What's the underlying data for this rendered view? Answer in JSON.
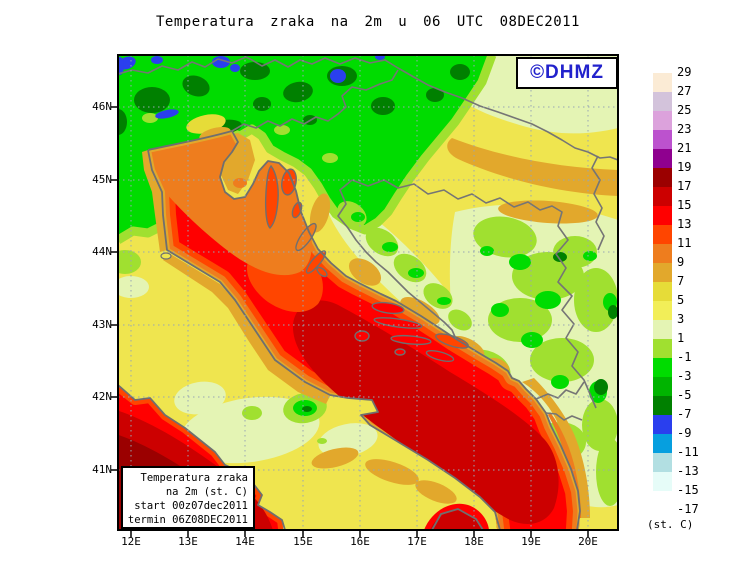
{
  "title": "Temperatura zraka na 2m u 06 UTC 08DEC2011",
  "watermark": {
    "text": "©DHMZ",
    "color": "#2222CC"
  },
  "info_box": {
    "lines": [
      "Temperatura zraka",
      "na 2m (st. C)",
      "start 00z07dec2011",
      "termin 06Z08DEC2011"
    ]
  },
  "axes": {
    "lat_ticks": [
      "46N",
      "45N",
      "44N",
      "43N",
      "42N",
      "41N"
    ],
    "lon_ticks": [
      "12E",
      "13E",
      "14E",
      "15E",
      "16E",
      "17E",
      "18E",
      "19E",
      "20E"
    ]
  },
  "colorbar": {
    "unit_label": "(st. C)",
    "tick_labels": [
      "29",
      "27",
      "25",
      "23",
      "21",
      "19",
      "17",
      "15",
      "13",
      "11",
      "9",
      "7",
      "5",
      "3",
      "1",
      "-1",
      "-3",
      "-5",
      "-7",
      "-9",
      "-11",
      "-13",
      "-15",
      "-17"
    ],
    "colors": [
      "#FBEBD5",
      "#D3C3DB",
      "#DCA2DC",
      "#BC52CE",
      "#8F008F",
      "#9B0000",
      "#CC0000",
      "#FF0000",
      "#FF4500",
      "#EE7D1E",
      "#E2A82C",
      "#E6DC38",
      "#F2EE58",
      "#E4F4B4",
      "#A0E030",
      "#00DC00",
      "#00B400",
      "#008000",
      "#2A3FEE",
      "#069FDF",
      "#B2DFE2",
      "#E6FCF8",
      "#FFFFFF"
    ]
  },
  "map_data": {
    "type": "filled-contour temperature field",
    "lon_range": [
      "12E",
      "20E"
    ],
    "lat_range": [
      "41N",
      "46N"
    ],
    "grid": "dotted graticule every 1 degree",
    "features": [
      {
        "area": "central and southern Adriatic Sea (diagonal band)",
        "temp_st_C": "15 to 17"
      },
      {
        "area": "Adriatic coastal waters and island channels",
        "temp_st_C": "11 to 15"
      },
      {
        "area": "north Adriatic gulf (top-left sea)",
        "temp_st_C": "9 to 11"
      },
      {
        "area": "southwest corner sea (Tyrrhenian)",
        "temp_st_C": "15 to 19"
      },
      {
        "area": "coastal land strips",
        "temp_st_C": "7 to 9"
      },
      {
        "area": "lowland interior (yellow zones)",
        "temp_st_C": "3 to 7"
      },
      {
        "area": "inland highlands (pale green patches)",
        "temp_st_C": "-1 to 3"
      },
      {
        "area": "northwest mountain region (greens)",
        "temp_st_C": "-7 to -1"
      },
      {
        "area": "highest peaks top-left (blue spots)",
        "temp_st_C": "-9 to -7"
      }
    ]
  }
}
